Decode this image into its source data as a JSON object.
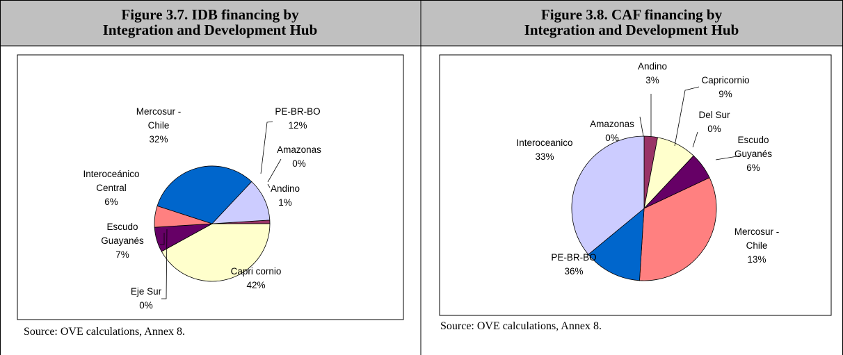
{
  "chart_data": [
    {
      "type": "pie",
      "title": "Figure 3.7. IDB financing by\nIntegration and Development Hub",
      "source": "Source: OVE calculations, Annex 8.",
      "categories": [
        "Amazonas",
        "Andino",
        "Capri cornio",
        "Eje Sur",
        "Escudo\nGuayanés",
        "Interoceánico\nCentral",
        "Mercosur -\nChile",
        "PE-BR-BO"
      ],
      "values": [
        0,
        1,
        42,
        0,
        7,
        6,
        32,
        12
      ],
      "value_labels": [
        "0%",
        "1%",
        "42%",
        "0%",
        "7%",
        "6%",
        "32%",
        "12%"
      ],
      "colors": [
        "#9999ff",
        "#993366",
        "#ffffcc",
        "#ccffff",
        "#660066",
        "#ff8080",
        "#0066cc",
        "#ccccff"
      ]
    },
    {
      "type": "pie",
      "title": "Figure 3.8. CAF financing by\nIntegration and Development Hub",
      "source": "Source: OVE calculations, Annex 8.",
      "categories": [
        "Amazonas",
        "Andino",
        "Capricornio",
        "Del Sur",
        "Escudo\nGuyanés",
        "Interoceanico",
        "Mercosur -\nChile",
        "PE-BR-BO"
      ],
      "values": [
        0,
        3,
        9,
        0,
        6,
        33,
        13,
        36
      ],
      "value_labels": [
        "0%",
        "3%",
        "9%",
        "0%",
        "6%",
        "33%",
        "13%",
        "36%"
      ],
      "colors": [
        "#9999ff",
        "#993366",
        "#ffffcc",
        "#ccffff",
        "#660066",
        "#ff8080",
        "#0066cc",
        "#ccccff"
      ]
    }
  ]
}
